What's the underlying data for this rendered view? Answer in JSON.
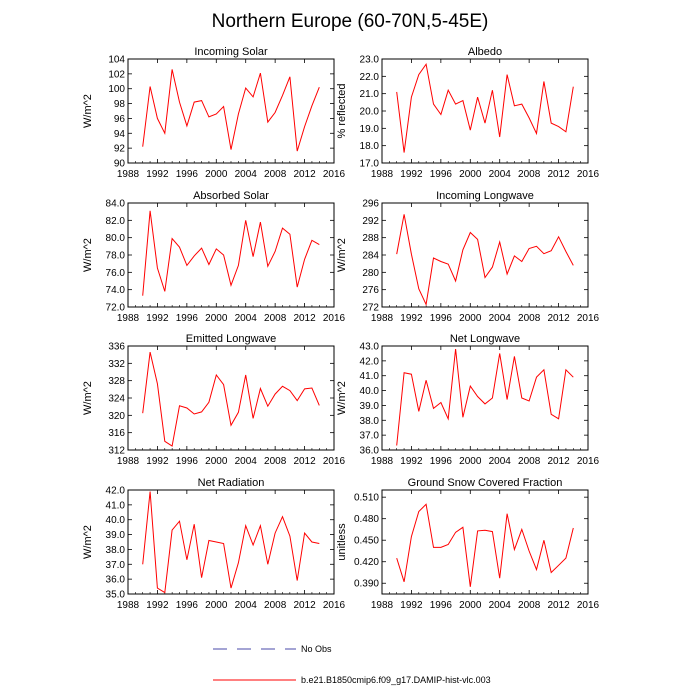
{
  "figure": {
    "title": "Northern Europe (60-70N,5-45E)",
    "line_color": "#ff0000",
    "obs_color": "#4a4aa8",
    "legend": [
      {
        "label": "No Obs",
        "style": "dashed"
      },
      {
        "label": "b.e21.B1850cmip6.f09_g17.DAMIP-hist-vlc.003",
        "style": "solid"
      }
    ]
  },
  "chart_data": [
    {
      "type": "line",
      "title": "Incoming Solar",
      "ylabel": "W/m^2",
      "xlim": [
        1988,
        2016
      ],
      "xticks": [
        1988,
        1992,
        1996,
        2000,
        2004,
        2008,
        2012,
        2016
      ],
      "ylim": [
        90,
        104
      ],
      "yticks": [
        90,
        92,
        94,
        96,
        98,
        100,
        102,
        104
      ],
      "ytick_labels": [
        "90",
        "92",
        "94",
        "96",
        "98",
        "100",
        "102",
        "104"
      ],
      "x": [
        1990,
        1991,
        1992,
        1993,
        1994,
        1995,
        1996,
        1997,
        1998,
        1999,
        2000,
        2001,
        2002,
        2003,
        2004,
        2005,
        2006,
        2007,
        2008,
        2009,
        2010,
        2011,
        2012,
        2013,
        2014
      ],
      "series": [
        {
          "name": "b.e21.B1850cmip6.f09_g17.DAMIP-hist-vlc.003",
          "values": [
            92.2,
            100.3,
            96.0,
            94.0,
            102.6,
            98.2,
            95.0,
            98.2,
            98.4,
            96.2,
            96.6,
            97.6,
            91.8,
            96.6,
            100.1,
            98.9,
            102.1,
            95.5,
            96.8,
            99.1,
            101.6,
            91.6,
            94.9,
            97.7,
            100.2
          ]
        }
      ]
    },
    {
      "type": "line",
      "title": "Albedo",
      "ylabel": "% reflected",
      "xlim": [
        1988,
        2016
      ],
      "xticks": [
        1988,
        1992,
        1996,
        2000,
        2004,
        2008,
        2012,
        2016
      ],
      "ylim": [
        17,
        23
      ],
      "yticks": [
        17,
        18,
        19,
        20,
        21,
        22,
        23
      ],
      "ytick_labels": [
        "17.0",
        "18.0",
        "19.0",
        "20.0",
        "21.0",
        "22.0",
        "23.0"
      ],
      "x": [
        1990,
        1991,
        1992,
        1993,
        1994,
        1995,
        1996,
        1997,
        1998,
        1999,
        2000,
        2001,
        2002,
        2003,
        2004,
        2005,
        2006,
        2007,
        2008,
        2009,
        2010,
        2011,
        2012,
        2013,
        2014
      ],
      "series": [
        {
          "name": "b.e21.B1850cmip6.f09_g17.DAMIP-hist-vlc.003",
          "values": [
            21.1,
            17.6,
            20.8,
            22.1,
            22.7,
            20.4,
            19.8,
            21.2,
            20.4,
            20.6,
            18.9,
            20.8,
            19.3,
            21.2,
            18.5,
            22.1,
            20.3,
            20.4,
            19.6,
            18.7,
            21.7,
            19.3,
            19.1,
            18.8,
            21.4
          ]
        }
      ]
    },
    {
      "type": "line",
      "title": "Absorbed Solar",
      "ylabel": "W/m^2",
      "xlim": [
        1988,
        2016
      ],
      "xticks": [
        1988,
        1992,
        1996,
        2000,
        2004,
        2008,
        2012,
        2016
      ],
      "ylim": [
        72,
        84
      ],
      "yticks": [
        72,
        74,
        76,
        78,
        80,
        82,
        84
      ],
      "ytick_labels": [
        "72.0",
        "74.0",
        "76.0",
        "78.0",
        "80.0",
        "82.0",
        "84.0"
      ],
      "x": [
        1990,
        1991,
        1992,
        1993,
        1994,
        1995,
        1996,
        1997,
        1998,
        1999,
        2000,
        2001,
        2002,
        2003,
        2004,
        2005,
        2006,
        2007,
        2008,
        2009,
        2010,
        2011,
        2012,
        2013,
        2014
      ],
      "series": [
        {
          "name": "b.e21.B1850cmip6.f09_g17.DAMIP-hist-vlc.003",
          "values": [
            73.3,
            83.1,
            76.5,
            73.8,
            79.9,
            78.9,
            76.8,
            77.9,
            78.8,
            76.9,
            78.7,
            78.0,
            74.5,
            76.8,
            82.0,
            77.8,
            81.8,
            76.7,
            78.4,
            81.1,
            80.4,
            74.3,
            77.5,
            79.7,
            79.2
          ]
        }
      ]
    },
    {
      "type": "line",
      "title": "Incoming Longwave",
      "ylabel": "W/m^2",
      "xlim": [
        1988,
        2016
      ],
      "xticks": [
        1988,
        1992,
        1996,
        2000,
        2004,
        2008,
        2012,
        2016
      ],
      "ylim": [
        272,
        296
      ],
      "yticks": [
        272,
        276,
        280,
        284,
        288,
        292,
        296
      ],
      "ytick_labels": [
        "272",
        "276",
        "280",
        "284",
        "288",
        "292",
        "296"
      ],
      "x": [
        1990,
        1991,
        1992,
        1993,
        1994,
        1995,
        1996,
        1997,
        1998,
        1999,
        2000,
        2001,
        2002,
        2003,
        2004,
        2005,
        2006,
        2007,
        2008,
        2009,
        2010,
        2011,
        2012,
        2013,
        2014
      ],
      "series": [
        {
          "name": "b.e21.B1850cmip6.f09_g17.DAMIP-hist-vlc.003",
          "values": [
            284.2,
            293.4,
            284.2,
            276.2,
            272.6,
            283.3,
            282.5,
            281.9,
            278.0,
            285.2,
            289.2,
            287.6,
            278.8,
            281.2,
            287.0,
            279.6,
            283.8,
            282.5,
            285.5,
            286.0,
            284.3,
            285.0,
            288.2,
            284.8,
            281.6
          ]
        }
      ]
    },
    {
      "type": "line",
      "title": "Emitted Longwave",
      "ylabel": "W/m^2",
      "xlim": [
        1988,
        2016
      ],
      "xticks": [
        1988,
        1992,
        1996,
        2000,
        2004,
        2008,
        2012,
        2016
      ],
      "ylim": [
        312,
        336
      ],
      "yticks": [
        312,
        316,
        320,
        324,
        328,
        332,
        336
      ],
      "ytick_labels": [
        "312",
        "316",
        "320",
        "324",
        "328",
        "332",
        "336"
      ],
      "x": [
        1990,
        1991,
        1992,
        1993,
        1994,
        1995,
        1996,
        1997,
        1998,
        1999,
        2000,
        2001,
        2002,
        2003,
        2004,
        2005,
        2006,
        2007,
        2008,
        2009,
        2010,
        2011,
        2012,
        2013,
        2014
      ],
      "series": [
        {
          "name": "b.e21.B1850cmip6.f09_g17.DAMIP-hist-vlc.003",
          "values": [
            320.5,
            334.6,
            327.3,
            314.0,
            312.9,
            322.2,
            321.7,
            320.3,
            320.8,
            323.0,
            329.3,
            327.1,
            317.7,
            320.7,
            329.3,
            319.3,
            326.2,
            322.1,
            324.9,
            326.7,
            325.7,
            323.4,
            326.1,
            326.3,
            322.3
          ]
        }
      ]
    },
    {
      "type": "line",
      "title": "Net Longwave",
      "ylabel": "W/m^2",
      "xlim": [
        1988,
        2016
      ],
      "xticks": [
        1988,
        1992,
        1996,
        2000,
        2004,
        2008,
        2012,
        2016
      ],
      "ylim": [
        36,
        43
      ],
      "yticks": [
        36,
        37,
        38,
        39,
        40,
        41,
        42,
        43
      ],
      "ytick_labels": [
        "36.0",
        "37.0",
        "38.0",
        "39.0",
        "40.0",
        "41.0",
        "42.0",
        "43.0"
      ],
      "x": [
        1990,
        1991,
        1992,
        1993,
        1994,
        1995,
        1996,
        1997,
        1998,
        1999,
        2000,
        2001,
        2002,
        2003,
        2004,
        2005,
        2006,
        2007,
        2008,
        2009,
        2010,
        2011,
        2012,
        2013,
        2014
      ],
      "series": [
        {
          "name": "b.e21.B1850cmip6.f09_g17.DAMIP-hist-vlc.003",
          "values": [
            36.3,
            41.2,
            41.1,
            38.6,
            40.7,
            38.8,
            39.2,
            38.1,
            42.8,
            38.2,
            40.3,
            39.6,
            39.1,
            39.5,
            42.5,
            39.4,
            42.3,
            39.5,
            39.3,
            40.9,
            41.4,
            38.4,
            38.1,
            41.4,
            40.9
          ]
        }
      ]
    },
    {
      "type": "line",
      "title": "Net Radiation",
      "ylabel": "W/m^2",
      "xlim": [
        1988,
        2016
      ],
      "xticks": [
        1988,
        1992,
        1996,
        2000,
        2004,
        2008,
        2012,
        2016
      ],
      "ylim": [
        35,
        42
      ],
      "yticks": [
        35,
        36,
        37,
        38,
        39,
        40,
        41,
        42
      ],
      "ytick_labels": [
        "35.0",
        "36.0",
        "37.0",
        "38.0",
        "39.0",
        "40.0",
        "41.0",
        "42.0"
      ],
      "x": [
        1990,
        1991,
        1992,
        1993,
        1994,
        1995,
        1996,
        1997,
        1998,
        1999,
        2000,
        2001,
        2002,
        2003,
        2004,
        2005,
        2006,
        2007,
        2008,
        2009,
        2010,
        2011,
        2012,
        2013,
        2014
      ],
      "series": [
        {
          "name": "b.e21.B1850cmip6.f09_g17.DAMIP-hist-vlc.003",
          "values": [
            37.0,
            41.9,
            35.4,
            35.1,
            39.3,
            39.9,
            37.3,
            39.7,
            36.1,
            38.6,
            38.5,
            38.4,
            35.4,
            37.1,
            39.6,
            38.3,
            39.6,
            37.0,
            39.1,
            40.2,
            38.9,
            35.9,
            39.1,
            38.5,
            38.4
          ]
        }
      ]
    },
    {
      "type": "line",
      "title": "Ground Snow Covered Fraction",
      "ylabel": "unitless",
      "xlim": [
        1988,
        2016
      ],
      "xticks": [
        1988,
        1992,
        1996,
        2000,
        2004,
        2008,
        2012,
        2016
      ],
      "ylim": [
        0.375,
        0.52
      ],
      "yticks": [
        0.39,
        0.42,
        0.45,
        0.48,
        0.51
      ],
      "ytick_labels": [
        "0.390",
        "0.420",
        "0.450",
        "0.480",
        "0.510"
      ],
      "x": [
        1990,
        1991,
        1992,
        1993,
        1994,
        1995,
        1996,
        1997,
        1998,
        1999,
        2000,
        2001,
        2002,
        2003,
        2004,
        2005,
        2006,
        2007,
        2008,
        2009,
        2010,
        2011,
        2012,
        2013,
        2014
      ],
      "series": [
        {
          "name": "b.e21.B1850cmip6.f09_g17.DAMIP-hist-vlc.003",
          "values": [
            0.425,
            0.392,
            0.455,
            0.49,
            0.5,
            0.44,
            0.44,
            0.444,
            0.461,
            0.468,
            0.385,
            0.463,
            0.464,
            0.462,
            0.397,
            0.487,
            0.437,
            0.465,
            0.435,
            0.409,
            0.45,
            0.405,
            0.415,
            0.425,
            0.467
          ]
        }
      ]
    }
  ]
}
